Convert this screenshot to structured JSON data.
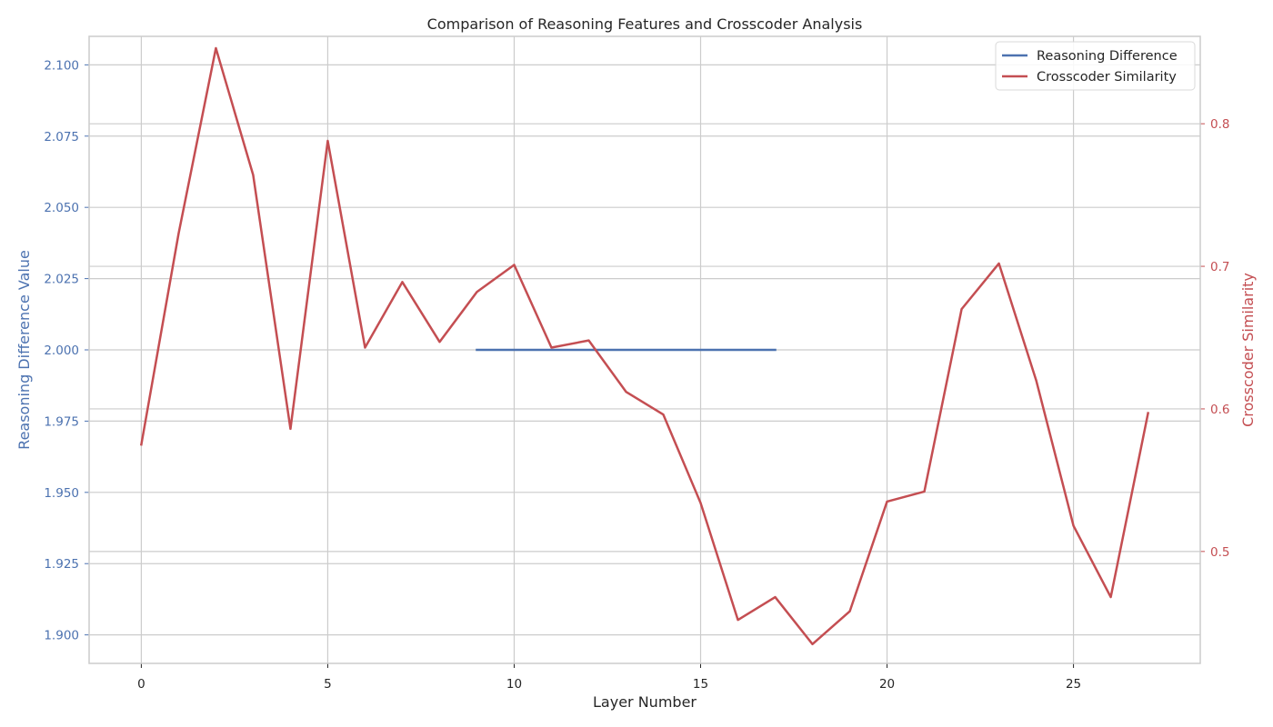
{
  "chart_data": {
    "type": "line",
    "title": "Comparison of Reasoning Features and Crosscoder Analysis",
    "xlabel": "Layer Number",
    "ylabel_left": "Reasoning Difference Value",
    "ylabel_right": "Crosscoder Similarity",
    "xlim": [
      -1.4,
      28.4
    ],
    "xticks": [
      0,
      5,
      10,
      15,
      20,
      25
    ],
    "ylim_left": [
      1.89,
      2.11
    ],
    "yticks_left": [
      "1.900",
      "1.925",
      "1.950",
      "1.975",
      "2.000",
      "2.025",
      "2.050",
      "2.075",
      "2.100"
    ],
    "ylim_right": [
      0.4215,
      0.8613
    ],
    "yticks_right": [
      "0.5",
      "0.6",
      "0.7",
      "0.8"
    ],
    "grid": true,
    "legend_position": "top-right",
    "series": [
      {
        "name": "Reasoning Difference",
        "axis": "left",
        "color": "#4c72b0",
        "x": [
          9,
          10,
          11,
          12,
          13,
          14,
          15,
          16,
          17
        ],
        "values": [
          2.0,
          2.0,
          2.0,
          2.0,
          2.0,
          2.0,
          2.0,
          2.0,
          2.0
        ]
      },
      {
        "name": "Crosscoder Similarity",
        "axis": "right",
        "color": "#c44e52",
        "x": [
          0,
          1,
          2,
          3,
          4,
          5,
          6,
          7,
          8,
          9,
          10,
          11,
          12,
          13,
          14,
          15,
          16,
          17,
          18,
          19,
          20,
          21,
          22,
          23,
          24,
          25,
          26,
          27
        ],
        "values": [
          0.575,
          0.723,
          0.853,
          0.764,
          0.586,
          0.788,
          0.643,
          0.689,
          0.647,
          0.682,
          0.701,
          0.643,
          0.648,
          0.612,
          0.596,
          0.534,
          0.452,
          0.468,
          0.435,
          0.458,
          0.535,
          0.542,
          0.67,
          0.702,
          0.62,
          0.518,
          0.468,
          0.597
        ]
      }
    ]
  }
}
